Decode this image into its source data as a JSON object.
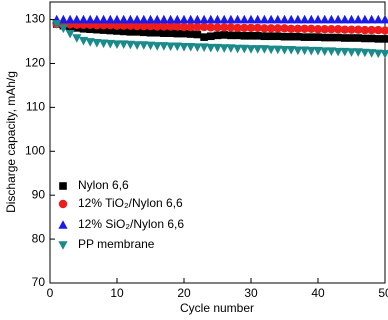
{
  "chart_data": {
    "type": "scatter",
    "x_label": "Cycle number",
    "y_label": "Discharge capacity, mAh/g",
    "xlim": [
      0,
      50
    ],
    "xticks": [
      0,
      10,
      20,
      30,
      40,
      50
    ],
    "ylim": [
      70,
      134
    ],
    "yticks": [
      70,
      80,
      90,
      100,
      110,
      120,
      130
    ],
    "x": [
      1,
      2,
      3,
      4,
      5,
      6,
      7,
      8,
      9,
      10,
      11,
      12,
      13,
      14,
      15,
      16,
      17,
      18,
      19,
      20,
      21,
      22,
      23,
      24,
      25,
      26,
      27,
      28,
      29,
      30,
      31,
      32,
      33,
      34,
      35,
      36,
      37,
      38,
      39,
      40,
      41,
      42,
      43,
      44,
      45,
      46,
      47,
      48,
      49,
      50
    ],
    "series": [
      {
        "name": "Nylon 6,6",
        "color": "#000000",
        "marker": "square",
        "values": [
          129,
          128.6,
          128.3,
          128.1,
          127.9,
          127.8,
          127.7,
          127.6,
          127.5,
          127.4,
          127.3,
          127.2,
          127.2,
          127.1,
          127.0,
          127.0,
          126.9,
          126.9,
          126.8,
          126.8,
          126.7,
          126.6,
          126.0,
          126.2,
          126.4,
          126.5,
          126.4,
          126.4,
          126.3,
          126.3,
          126.3,
          126.2,
          126.2,
          126.2,
          126.1,
          126.1,
          126.1,
          126.0,
          126.0,
          126.0,
          125.9,
          125.9,
          125.9,
          125.8,
          125.8,
          125.8,
          125.7,
          125.7,
          125.6,
          125.6
        ]
      },
      {
        "name": "12% TiO₂/Nylon 6,6",
        "color": "#ee1c1c",
        "marker": "circle",
        "values": [
          129.0,
          128.9,
          128.9,
          128.8,
          128.8,
          128.8,
          128.7,
          128.7,
          128.7,
          128.6,
          128.6,
          128.6,
          128.5,
          128.5,
          128.5,
          128.4,
          128.4,
          128.4,
          128.4,
          128.3,
          128.3,
          128.3,
          128.3,
          128.2,
          128.2,
          128.2,
          128.2,
          128.1,
          128.1,
          128.1,
          128.1,
          128.0,
          128.0,
          128.0,
          128.0,
          127.9,
          127.9,
          127.9,
          127.9,
          127.8,
          127.8,
          127.8,
          127.8,
          127.7,
          127.7,
          127.7,
          127.6,
          127.6,
          127.6,
          127.5
        ]
      },
      {
        "name": "12% SiO₂/Nylon 6,6",
        "color": "#1a1aee",
        "marker": "triangle-up",
        "values": [
          130,
          130,
          130,
          130,
          130,
          130,
          130,
          130,
          130,
          130,
          130,
          130,
          130,
          130,
          130,
          130,
          130,
          130,
          130,
          130,
          130,
          130,
          130,
          130,
          130,
          130,
          130,
          130,
          130,
          130,
          130,
          130,
          130,
          130,
          130,
          130,
          130,
          130,
          130,
          130,
          130,
          130,
          130,
          130,
          130,
          130,
          130,
          130,
          130,
          130
        ]
      },
      {
        "name": "PP membrane",
        "color": "#1b8a8a",
        "marker": "triangle-down",
        "values": [
          129,
          128,
          126.8,
          125.8,
          125.2,
          124.9,
          124.7,
          124.6,
          124.5,
          124.4,
          124.4,
          124.3,
          124.2,
          124.2,
          124.1,
          124.0,
          124.0,
          123.9,
          123.9,
          123.8,
          123.8,
          123.7,
          123.7,
          123.6,
          123.6,
          123.5,
          123.5,
          123.4,
          123.4,
          123.3,
          123.3,
          123.3,
          123.2,
          123.2,
          123.1,
          123.1,
          123.0,
          123.0,
          122.9,
          122.9,
          122.8,
          122.8,
          122.7,
          122.7,
          122.6,
          122.6,
          122.5,
          122.4,
          122.3,
          122.2
        ]
      }
    ]
  }
}
